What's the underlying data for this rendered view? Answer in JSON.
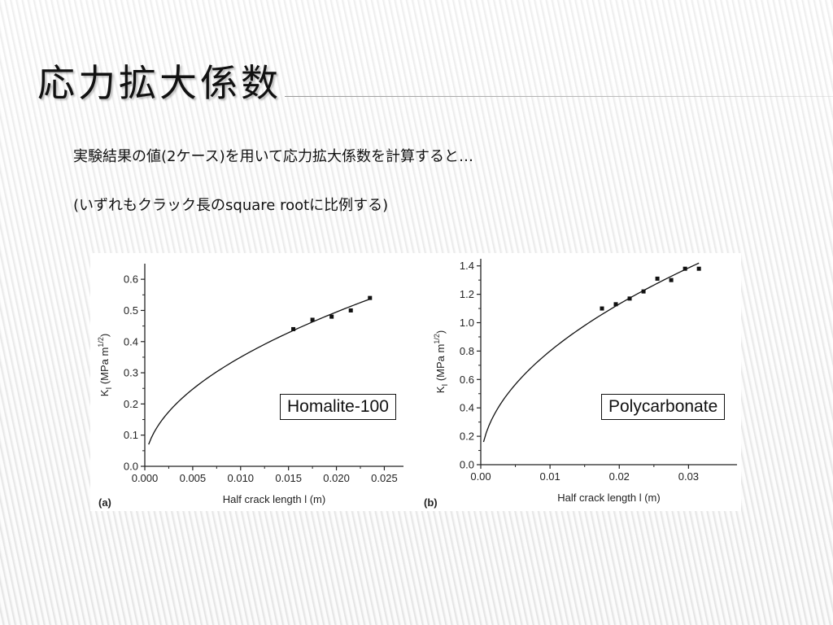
{
  "slide": {
    "title": "応力拡大係数",
    "line1": "実験結果の値(2ケース)を用いて応力拡大係数を計算すると…",
    "line2": "(いずれもクラック長のsquare rootに比例する)"
  },
  "chart_data": [
    {
      "type": "scatter",
      "panel_label": "(a)",
      "material_label": "Homalite-100",
      "xlabel": "Half crack length l (m)",
      "ylabel_main": "K",
      "ylabel_sub": "I",
      "ylabel_unit": " (MPa m",
      "ylabel_exp": "1/2",
      "ylabel_close": ")",
      "xlim": [
        0,
        0.027
      ],
      "ylim": [
        0,
        0.65
      ],
      "xticks": [
        "0.000",
        "0.005",
        "0.010",
        "0.015",
        "0.020",
        "0.025"
      ],
      "xtick_values": [
        0,
        0.005,
        0.01,
        0.015,
        0.02,
        0.025
      ],
      "yticks": [
        "0.0",
        "0.1",
        "0.2",
        "0.3",
        "0.4",
        "0.5",
        "0.6"
      ],
      "ytick_values": [
        0,
        0.1,
        0.2,
        0.3,
        0.4,
        0.5,
        0.6
      ],
      "points": {
        "x": [
          0.0155,
          0.0175,
          0.0195,
          0.0215,
          0.0235
        ],
        "y": [
          0.44,
          0.47,
          0.48,
          0.5,
          0.54
        ]
      },
      "fit": {
        "form": "k*sqrt(x)",
        "k": 3.5,
        "x_start": 0.0004,
        "x_end": 0.0235
      }
    },
    {
      "type": "scatter",
      "panel_label": "(b)",
      "material_label": "Polycarbonate",
      "xlabel": "Half crack length l (m)",
      "ylabel_main": "K",
      "ylabel_sub": "I",
      "ylabel_unit": " (MPa m",
      "ylabel_exp": "1/2",
      "ylabel_close": ")",
      "xlim": [
        0,
        0.037
      ],
      "ylim": [
        0,
        1.45
      ],
      "xticks": [
        "0.00",
        "0.01",
        "0.02",
        "0.03"
      ],
      "xtick_values": [
        0,
        0.01,
        0.02,
        0.03
      ],
      "yticks": [
        "0.0",
        "0.2",
        "0.4",
        "0.6",
        "0.8",
        "1.0",
        "1.2",
        "1.4"
      ],
      "ytick_values": [
        0,
        0.2,
        0.4,
        0.6,
        0.8,
        1.0,
        1.2,
        1.4
      ],
      "points": {
        "x": [
          0.0175,
          0.0195,
          0.0215,
          0.0235,
          0.0255,
          0.0275,
          0.0295,
          0.0315
        ],
        "y": [
          1.1,
          1.13,
          1.17,
          1.22,
          1.31,
          1.3,
          1.38,
          1.38
        ]
      },
      "fit": {
        "form": "k*sqrt(x)",
        "k": 8.0,
        "x_start": 0.0004,
        "x_end": 0.0315
      }
    }
  ]
}
